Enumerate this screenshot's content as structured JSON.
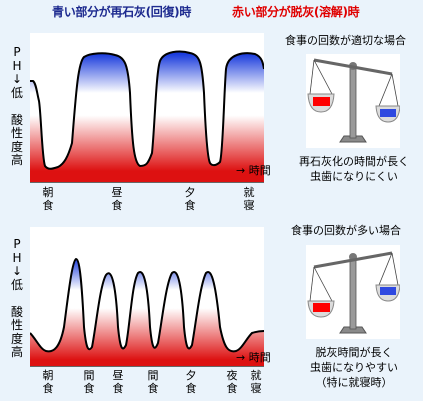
{
  "header": {
    "blue_caption": "青い部分が再石灰(回復)時",
    "red_caption": "赤い部分が脱灰(溶解)時"
  },
  "y_axis_label": [
    "P",
    "H",
    "↓",
    "低",
    "",
    "酸",
    "性",
    "度",
    "高"
  ],
  "time_arrow_label": "→ 時間",
  "top_case": {
    "title": "食事の回数が適切な場合",
    "meals": [
      {
        "label": [
          "朝",
          "食"
        ]
      },
      {
        "label": [
          "昼",
          "食"
        ]
      },
      {
        "label": [
          "夕",
          "食"
        ]
      },
      {
        "label": [
          "就",
          "寝"
        ]
      }
    ],
    "note": [
      "再石灰化の時間が長く",
      "虫歯になりにくい"
    ],
    "scale": {
      "left_pan_color": "#ff0000",
      "right_pan_color": "#2f49e0",
      "tilt": "left-down"
    }
  },
  "bottom_case": {
    "title": "食事の回数が多い場合",
    "meals": [
      {
        "label": [
          "朝",
          "食"
        ]
      },
      {
        "label": [
          "間",
          "食"
        ]
      },
      {
        "label": [
          "昼",
          "食"
        ]
      },
      {
        "label": [
          "間",
          "食"
        ]
      },
      {
        "label": [
          "夕",
          "食"
        ]
      },
      {
        "label": [
          "夜",
          "食"
        ]
      },
      {
        "label": [
          "就",
          "寝"
        ]
      }
    ],
    "note": [
      "脱灰時間が長く",
      "虫歯になりやすい",
      "（特に就寝時）"
    ],
    "scale": {
      "left_pan_color": "#ff0000",
      "right_pan_color": "#2f49e0",
      "tilt": "left-down"
    }
  },
  "colors": {
    "recovery": "#1a3bdc",
    "dissolution": "#dd1111",
    "panel_bg": "#ffffff",
    "page_bg": "#eaf3fb"
  }
}
